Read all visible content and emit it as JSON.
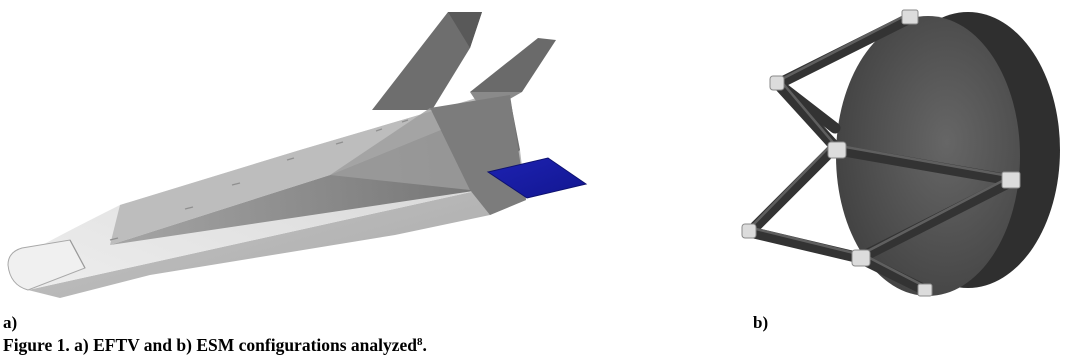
{
  "figure": {
    "label_a": "a)",
    "label_b": "b)",
    "caption": {
      "prefix": "Figure 1. a) EFTV and b) ESM configurations analyzed",
      "superscript": "8",
      "suffix": "."
    },
    "panel_a": {
      "subject": "EFTV",
      "colors": {
        "body_light": "#e3e3e3",
        "body_mid": "#b9b9b9",
        "body_dark": "#6c6c6c",
        "fin": "#707070",
        "flap": "#1a1fa6"
      }
    },
    "panel_b": {
      "subject": "ESM",
      "colors": {
        "shield_face": "#565656",
        "shield_rim": "#3a3a3a",
        "struts": "#3c3c3c",
        "fittings": "#d8d8d8"
      }
    }
  }
}
